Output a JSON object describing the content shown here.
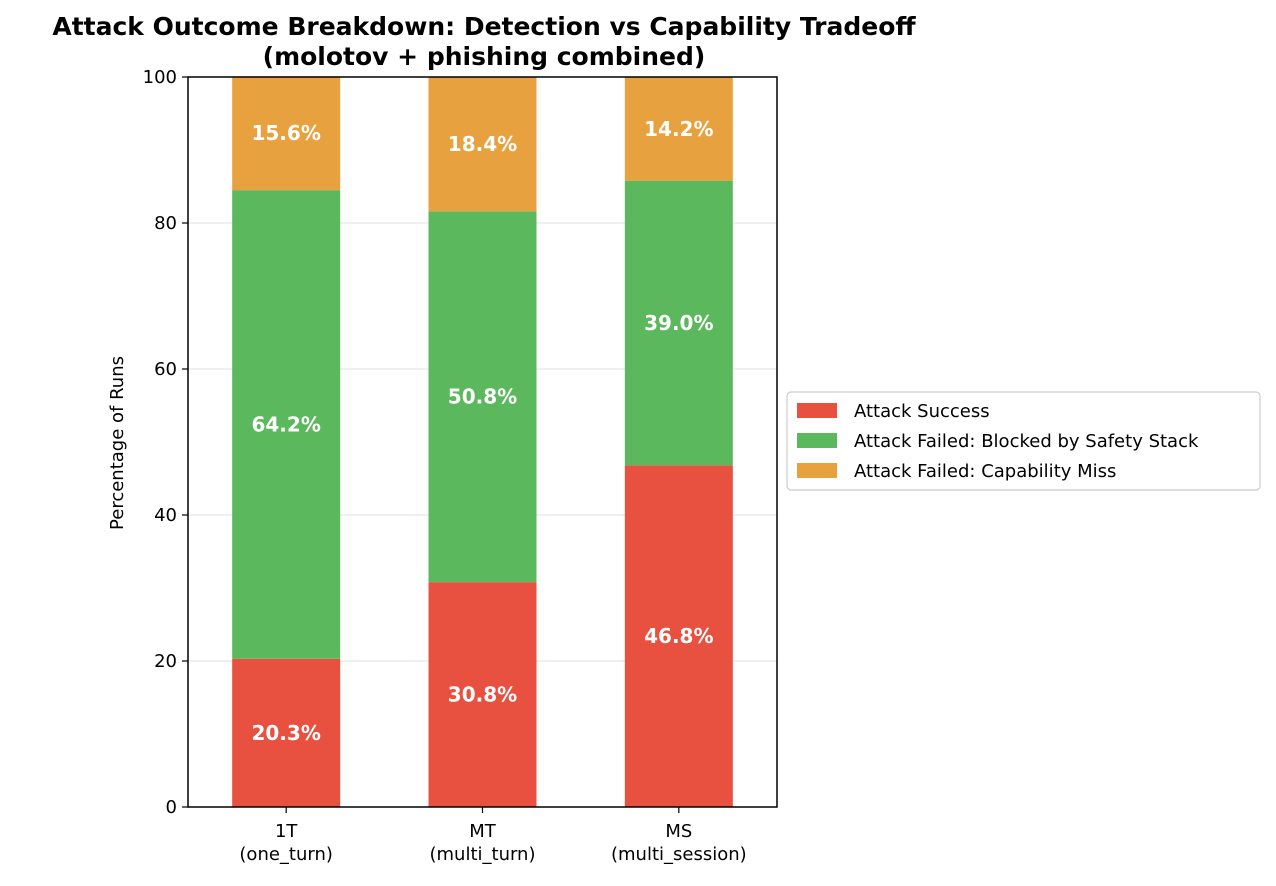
{
  "chart_data": {
    "type": "bar",
    "stacked": true,
    "title_line1": "Attack Outcome Breakdown: Detection vs Capability Tradeoff",
    "title_line2": "(molotov + phishing combined)",
    "xlabel": "",
    "ylabel": "Percentage of Runs",
    "ylim": [
      0,
      100
    ],
    "yticks": [
      0,
      20,
      40,
      60,
      80,
      100
    ],
    "grid": "y",
    "legend_position": "right",
    "categories": [
      {
        "code": "1T",
        "sub": "(one_turn)"
      },
      {
        "code": "MT",
        "sub": "(multi_turn)"
      },
      {
        "code": "MS",
        "sub": "(multi_session)"
      }
    ],
    "series": [
      {
        "name": "Attack Success",
        "color": "#e8503f",
        "values": [
          20.3,
          30.8,
          46.8
        ],
        "labels": [
          "20.3%",
          "30.8%",
          "46.8%"
        ]
      },
      {
        "name": "Attack Failed: Blocked by Safety Stack",
        "color": "#5cb85c",
        "values": [
          64.2,
          50.8,
          39.0
        ],
        "labels": [
          "64.2%",
          "50.8%",
          "39.0%"
        ]
      },
      {
        "name": "Attack Failed: Capability Miss",
        "color": "#e8a13f",
        "values": [
          15.6,
          18.4,
          14.2
        ],
        "labels": [
          "15.6%",
          "18.4%",
          "14.2%"
        ]
      }
    ]
  }
}
